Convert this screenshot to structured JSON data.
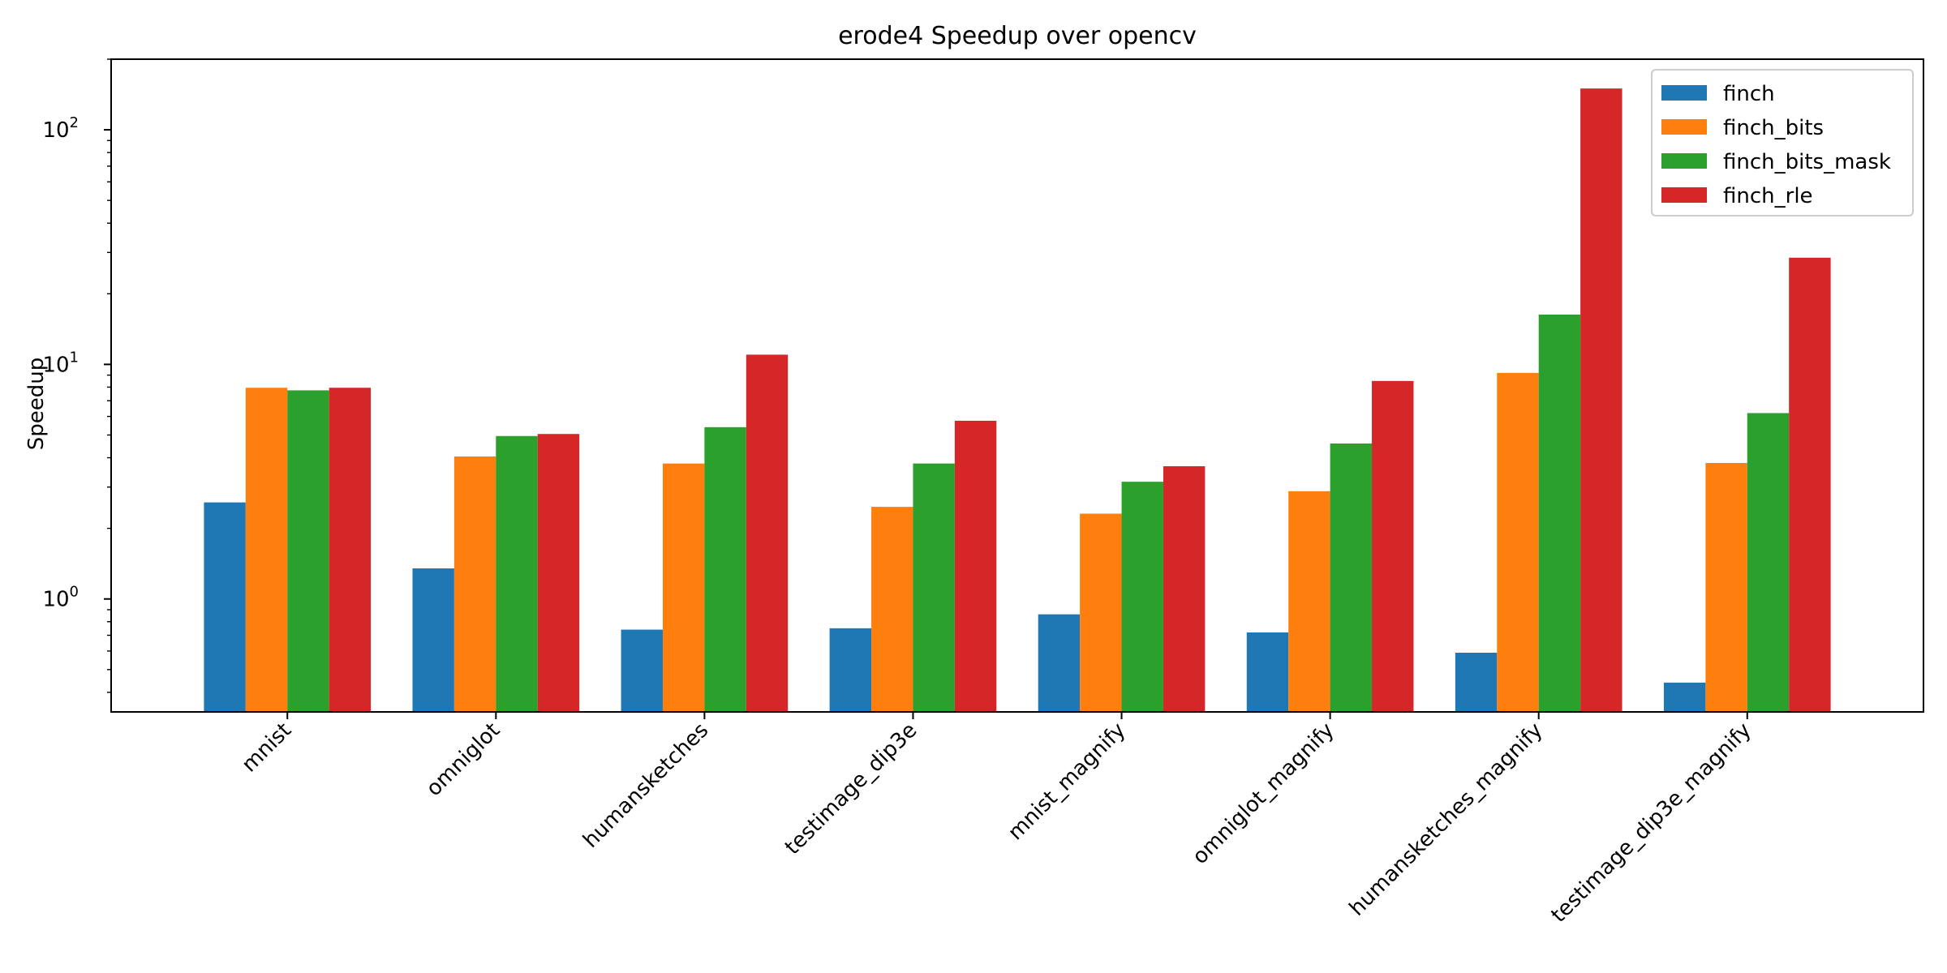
{
  "chart_data": {
    "type": "bar",
    "title": "erode4 Speedup over opencv",
    "xlabel": "",
    "ylabel": "Speedup",
    "yscale": "log",
    "ylim": [
      0.33,
      200
    ],
    "yticks": [
      {
        "value": 1,
        "label": "10^0",
        "base": "10",
        "exp": "0"
      },
      {
        "value": 10,
        "label": "10^1",
        "base": "10",
        "exp": "1"
      },
      {
        "value": 100,
        "label": "10^2",
        "base": "10",
        "exp": "2"
      }
    ],
    "grid": false,
    "legend_position": "top-right",
    "categories": [
      "mnist",
      "omniglot",
      "humansketches",
      "testimage_dip3e",
      "mnist_magnify",
      "omniglot_magnify",
      "humansketches_magnify",
      "testimage_dip3e_magnify"
    ],
    "series": [
      {
        "name": "finch",
        "color": "#1f77b4",
        "values": [
          2.58,
          1.35,
          0.74,
          0.75,
          0.86,
          0.72,
          0.59,
          0.44
        ]
      },
      {
        "name": "finch_bits",
        "color": "#ff7f0e",
        "values": [
          7.95,
          4.05,
          3.78,
          2.47,
          2.31,
          2.88,
          9.2,
          3.8
        ]
      },
      {
        "name": "finch_bits_mask",
        "color": "#2ca02c",
        "values": [
          7.75,
          4.95,
          5.4,
          3.78,
          3.16,
          4.6,
          16.3,
          6.2
        ]
      },
      {
        "name": "finch_rle",
        "color": "#d62728",
        "values": [
          7.95,
          5.05,
          11.0,
          5.75,
          3.68,
          8.5,
          150,
          28.5
        ]
      }
    ]
  }
}
